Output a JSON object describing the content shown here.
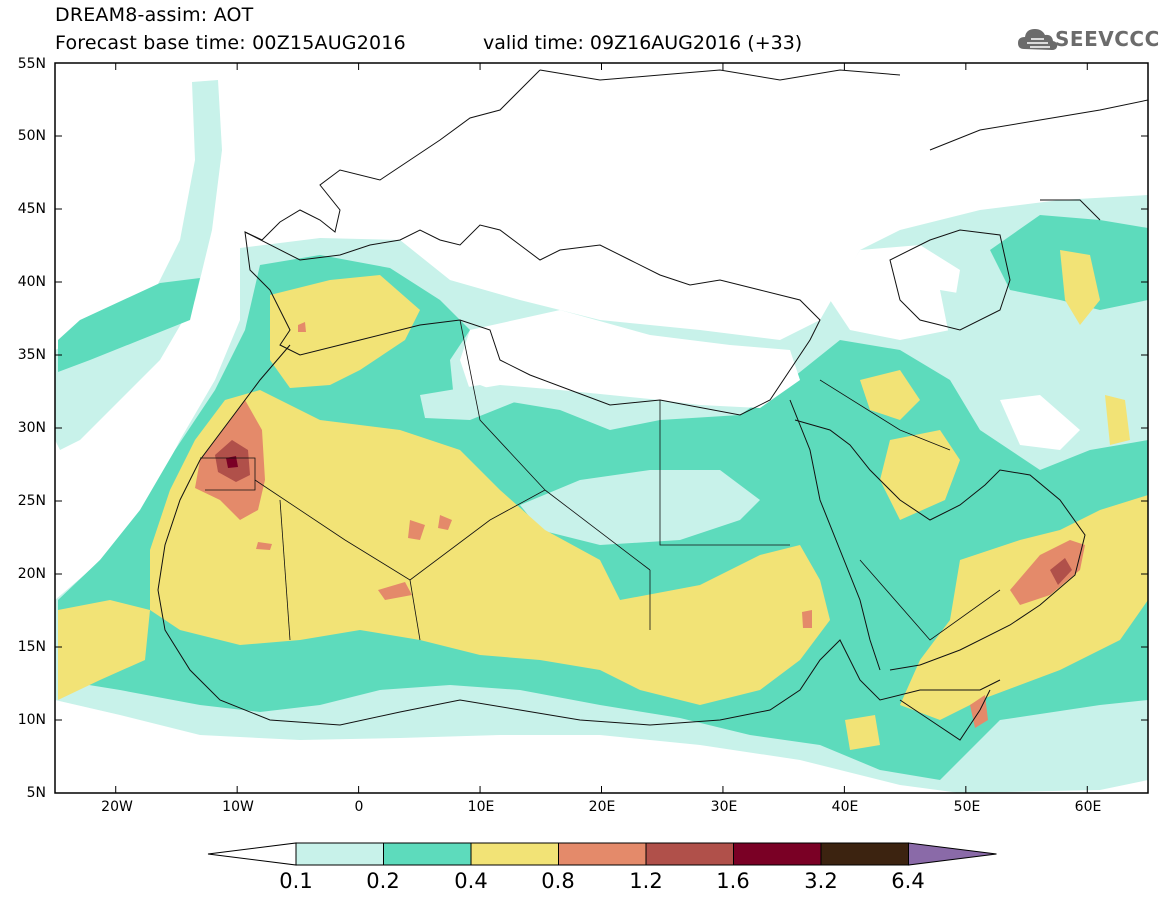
{
  "header": {
    "title": "DREAM8-assim: AOT",
    "forecast_base": "Forecast base time: 00Z15AUG2016",
    "valid_time": "valid time: 09Z16AUG2016 (+33)",
    "logo_text": "SEEVCCC"
  },
  "map": {
    "lat_labels": [
      "55N",
      "50N",
      "45N",
      "40N",
      "35N",
      "30N",
      "25N",
      "20N",
      "15N",
      "10N",
      "5N"
    ],
    "lon_labels": [
      "20W",
      "10W",
      "0",
      "10E",
      "20E",
      "30E",
      "40E",
      "50E",
      "60E"
    ],
    "lon_range": [
      -25,
      65
    ],
    "lat_range": [
      5,
      55
    ]
  },
  "legend": {
    "labels": [
      "0.1",
      "0.2",
      "0.4",
      "0.8",
      "1.2",
      "1.6",
      "3.2",
      "6.4"
    ],
    "colors": [
      "#ffffff",
      "#c8f2ea",
      "#5ddbbc",
      "#f2e376",
      "#e48a6a",
      "#b0504a",
      "#7a0025",
      "#3c2310",
      "#8a6aa8"
    ]
  }
}
